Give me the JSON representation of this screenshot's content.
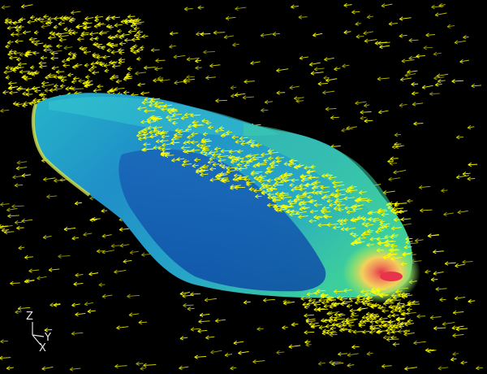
{
  "view": {
    "background": "#000000",
    "triad_labels": {
      "z": "Z",
      "y": "Y",
      "x": "X"
    }
  },
  "vectors": {
    "color": "#ffff00",
    "flow_direction": "right-to-left"
  },
  "surface": {
    "colormap": [
      "#0b3fa8",
      "#1d6fc9",
      "#23a8c4",
      "#2fc9a6",
      "#8fe06a",
      "#f2e45a",
      "#f5a24c",
      "#e8344a"
    ]
  }
}
